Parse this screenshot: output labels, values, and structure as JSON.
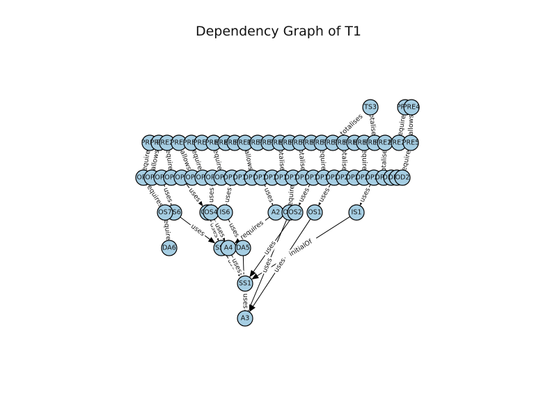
{
  "title": "Dependency Graph of T1",
  "colors": {
    "node_fill": "#a6cee3",
    "node_stroke": "#000000",
    "edge": "#000000",
    "background": "#ffffff"
  },
  "nodes": [
    {
      "id": "TS3",
      "label": "TS3",
      "layer": 0
    },
    {
      "id": "PRE3",
      "label": "PRE3",
      "layer": 0
    },
    {
      "id": "PRE4",
      "label": "PRE4",
      "layer": 0
    },
    {
      "id": "PRE1",
      "label": "PRE1",
      "layer": 1
    },
    {
      "id": "PRE2",
      "label": "PRE2",
      "layer": 1
    },
    {
      "id": "PRE20",
      "label": "PRE20",
      "layer": 1
    },
    {
      "id": "PRE6",
      "label": "PRE6",
      "layer": 1
    },
    {
      "id": "PRE7",
      "label": "PRE7",
      "layer": 1
    },
    {
      "id": "PRE8",
      "label": "PRE8",
      "layer": 1
    },
    {
      "id": "PRE9",
      "label": "PRE9",
      "layer": 1
    },
    {
      "id": "PRE10",
      "label": "PRE10",
      "layer": 1
    },
    {
      "id": "PRE11",
      "label": "PRE11",
      "layer": 1
    },
    {
      "id": "PRE12",
      "label": "PRE12",
      "layer": 1
    },
    {
      "id": "PRE13",
      "label": "PRE13",
      "layer": 1
    },
    {
      "id": "PRE14",
      "label": "PRE14",
      "layer": 1
    },
    {
      "id": "PRE15",
      "label": "PRE15",
      "layer": 1
    },
    {
      "id": "PRE16",
      "label": "PRE16",
      "layer": 1
    },
    {
      "id": "PRE17",
      "label": "PRE17",
      "layer": 1
    },
    {
      "id": "PRE18",
      "label": "PRE18",
      "layer": 1
    },
    {
      "id": "PRE19",
      "label": "PRE19",
      "layer": 1
    },
    {
      "id": "PRE21",
      "label": "PRE21",
      "layer": 1
    },
    {
      "id": "PRE22",
      "label": "PRE22",
      "layer": 1
    },
    {
      "id": "PRE23",
      "label": "PRE23",
      "layer": 1
    },
    {
      "id": "PRE24",
      "label": "PRE24",
      "layer": 1
    },
    {
      "id": "PRE25",
      "label": "PRE25",
      "layer": 1
    },
    {
      "id": "PRE26",
      "label": "PRE26",
      "layer": 1
    },
    {
      "id": "PRE27",
      "label": "PRE27",
      "layer": 1
    },
    {
      "id": "PRE5",
      "label": "PRE5",
      "layer": 1
    },
    {
      "id": "OP1",
      "label": "OP1",
      "layer": 2
    },
    {
      "id": "OP2",
      "label": "OP2",
      "layer": 2
    },
    {
      "id": "OP3",
      "label": "OP3",
      "layer": 2
    },
    {
      "id": "OP4",
      "label": "OP4",
      "layer": 2
    },
    {
      "id": "OP5",
      "label": "OP5",
      "layer": 2
    },
    {
      "id": "OP6",
      "label": "OP6",
      "layer": 2
    },
    {
      "id": "OP7",
      "label": "OP7",
      "layer": 2
    },
    {
      "id": "OP8",
      "label": "OP8",
      "layer": 2
    },
    {
      "id": "OP9",
      "label": "OP9",
      "layer": 2
    },
    {
      "id": "OP10",
      "label": "OP10",
      "layer": 2
    },
    {
      "id": "OP11",
      "label": "OP11",
      "layer": 2
    },
    {
      "id": "OP12",
      "label": "OP12",
      "layer": 2
    },
    {
      "id": "OP13",
      "label": "OP13",
      "layer": 2
    },
    {
      "id": "OP14",
      "label": "OP14",
      "layer": 2
    },
    {
      "id": "OP15",
      "label": "OP15",
      "layer": 2
    },
    {
      "id": "OP16",
      "label": "OP16",
      "layer": 2
    },
    {
      "id": "OP17",
      "label": "OP17",
      "layer": 2
    },
    {
      "id": "OP18",
      "label": "OP18",
      "layer": 2
    },
    {
      "id": "OP19",
      "label": "OP19",
      "layer": 2
    },
    {
      "id": "OP20",
      "label": "OP20",
      "layer": 2
    },
    {
      "id": "OP21",
      "label": "OP21",
      "layer": 2
    },
    {
      "id": "OP22",
      "label": "OP22",
      "layer": 2
    },
    {
      "id": "OP23",
      "label": "OP23",
      "layer": 2
    },
    {
      "id": "OP24",
      "label": "OP24",
      "layer": 2
    },
    {
      "id": "OP25",
      "label": "OP25",
      "layer": 2
    },
    {
      "id": "OP26",
      "label": "OP26",
      "layer": 2
    },
    {
      "id": "OP27",
      "label": "OP27",
      "layer": 2
    },
    {
      "id": "OD2",
      "label": "OD2",
      "layer": 2
    },
    {
      "id": "OS6",
      "label": "OS6",
      "layer": 3
    },
    {
      "id": "OS7",
      "label": "OS7",
      "layer": 3
    },
    {
      "id": "OS5",
      "label": "OS5",
      "layer": 3
    },
    {
      "id": "OS4",
      "label": "OS4",
      "layer": 3
    },
    {
      "id": "IS6",
      "label": "IS6",
      "layer": 3
    },
    {
      "id": "A2",
      "label": "A2",
      "layer": 3
    },
    {
      "id": "OS3",
      "label": "OS3",
      "layer": 3
    },
    {
      "id": "OS2",
      "label": "OS2",
      "layer": 3
    },
    {
      "id": "OS1",
      "label": "OS1",
      "layer": 3
    },
    {
      "id": "IS1",
      "label": "IS1",
      "layer": 3
    },
    {
      "id": "DA6",
      "label": "DA6",
      "layer": 4
    },
    {
      "id": "SS4",
      "label": "SS4",
      "layer": 4
    },
    {
      "id": "A4",
      "label": "A4",
      "layer": 4
    },
    {
      "id": "DA5",
      "label": "DA5",
      "layer": 4
    },
    {
      "id": "SS1",
      "label": "SS1",
      "layer": 5
    },
    {
      "id": "A3",
      "label": "A3",
      "layer": 6
    }
  ],
  "edges": [
    {
      "source": "TS3",
      "target": "PRE21",
      "label": "totalises"
    },
    {
      "source": "TS3",
      "target": "PRE25",
      "label": "totalises"
    },
    {
      "source": "PRE3",
      "target": "PRE27",
      "label": "requires"
    },
    {
      "source": "PRE4",
      "target": "PRE5",
      "label": "allows"
    },
    {
      "source": "PRE1",
      "target": "OP1",
      "label": "requires"
    },
    {
      "source": "PRE2",
      "target": "OP2",
      "label": "allows"
    },
    {
      "source": "PRE20",
      "target": "OP4",
      "label": "requires"
    },
    {
      "source": "PRE6",
      "target": "OP6",
      "label": "allows"
    },
    {
      "source": "PRE7",
      "target": "OP7",
      "label": "requires"
    },
    {
      "source": "PRE9",
      "target": "OP9",
      "label": "requires"
    },
    {
      "source": "PRE12",
      "target": "OP12",
      "label": "allows"
    },
    {
      "source": "PRE15",
      "target": "OP15",
      "label": "totalises"
    },
    {
      "source": "PRE17",
      "target": "OP17",
      "label": "totalises"
    },
    {
      "source": "PRE19",
      "target": "OP19",
      "label": "requires"
    },
    {
      "source": "PRE22",
      "target": "OP21",
      "label": "totalises"
    },
    {
      "source": "PRE24",
      "target": "OP23",
      "label": "requires"
    },
    {
      "source": "PRE26",
      "target": "OP25",
      "label": "totalises"
    },
    {
      "source": "PRE5",
      "target": "OD2",
      "label": "requires"
    },
    {
      "source": "OP1",
      "target": "OS7",
      "label": "requires"
    },
    {
      "source": "OP3",
      "target": "OS6",
      "label": "uses"
    },
    {
      "source": "OP5",
      "target": "OS5",
      "label": "uses"
    },
    {
      "source": "OP8",
      "target": "OS4",
      "label": "uses"
    },
    {
      "source": "OP10",
      "target": "IS6",
      "label": "uses"
    },
    {
      "source": "OP13",
      "target": "A2",
      "label": "uses"
    },
    {
      "source": "OP16",
      "target": "OS3",
      "label": "requires"
    },
    {
      "source": "OP18",
      "target": "OS2",
      "label": "uses"
    },
    {
      "source": "OP20",
      "target": "OS1",
      "label": "uses"
    },
    {
      "source": "OP24",
      "target": "IS1",
      "label": "uses"
    },
    {
      "source": "OS7",
      "target": "DA6",
      "label": "requires"
    },
    {
      "source": "OS6",
      "target": "SS4",
      "label": "uses"
    },
    {
      "source": "OS5",
      "target": "SS4",
      "label": "uses"
    },
    {
      "source": "OS4",
      "target": "A4",
      "label": "uses"
    },
    {
      "source": "IS6",
      "target": "DA5",
      "label": "uses"
    },
    {
      "source": "A2",
      "target": "A4",
      "label": "requires"
    },
    {
      "source": "SS4",
      "target": "SS1",
      "label": "uses"
    },
    {
      "source": "A4",
      "target": "SS1",
      "label": "uses"
    },
    {
      "source": "OS3",
      "target": "A3",
      "label": "uses"
    },
    {
      "source": "OS2",
      "target": "SS1",
      "label": "uses"
    },
    {
      "source": "OS1",
      "target": "A3",
      "label": "uses"
    },
    {
      "source": "IS1",
      "target": "SS1",
      "label": "initialOf"
    },
    {
      "source": "DA5",
      "target": "A3",
      "label": "uses"
    },
    {
      "source": "SS1",
      "target": "A3",
      "label": "uses"
    }
  ]
}
